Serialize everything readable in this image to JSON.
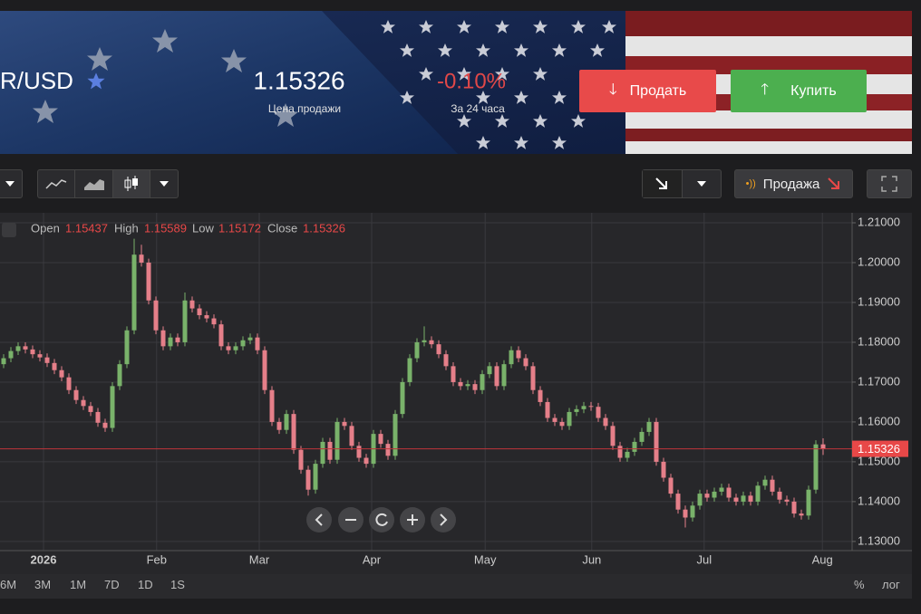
{
  "header": {
    "pair": "R/USD",
    "price_caption": "Цена продажи",
    "change": "-0.10%",
    "change_caption": "За 24 часа",
    "sell_button": "Продать",
    "buy_button": "Купить"
  },
  "toolbar": {
    "signal": "Продажа"
  },
  "range_bar": {
    "ranges": [
      "6M",
      "3M",
      "1M",
      "7D",
      "1D",
      "1S"
    ],
    "percent": "%",
    "log": "лог"
  },
  "chart_data": {
    "type": "candlestick",
    "legend_labels": [
      "Open",
      "High",
      "Low",
      "Close"
    ],
    "up_color": "#79b26a",
    "down_color": "#e57f89",
    "price_line_color": "#c0353a",
    "grid": true,
    "log_scale": false,
    "xlim": [
      -0.5,
      117
    ],
    "ylim": [
      1.1277,
      1.2125
    ],
    "xticks": [
      {
        "value": 5.5,
        "label": "2026"
      },
      {
        "value": 21.1,
        "label": "Feb"
      },
      {
        "value": 35.25,
        "label": "Mar"
      },
      {
        "value": 50.75,
        "label": "Apr"
      },
      {
        "value": 66.4,
        "label": "May"
      },
      {
        "value": 81.1,
        "label": "Jun"
      },
      {
        "value": 96.6,
        "label": "Jul"
      },
      {
        "value": 112.9,
        "label": "Aug"
      }
    ],
    "yticks": [
      {
        "value": 1.13,
        "label": "1.13000"
      },
      {
        "value": 1.14,
        "label": "1.14000"
      },
      {
        "value": 1.15,
        "label": "1.15000"
      },
      {
        "value": 1.16,
        "label": "1.16000"
      },
      {
        "value": 1.17,
        "label": "1.17000"
      },
      {
        "value": 1.18,
        "label": "1.18000"
      },
      {
        "value": 1.19,
        "label": "1.19000"
      },
      {
        "value": 1.2,
        "label": "1.20000"
      },
      {
        "value": 1.21,
        "label": "1.21000"
      }
    ],
    "open": [
      1.1745,
      1.176,
      1.1778,
      1.179,
      1.1782,
      1.177,
      1.1762,
      1.1748,
      1.173,
      1.1712,
      1.168,
      1.1655,
      1.164,
      1.1625,
      1.1598,
      1.1585,
      1.169,
      1.1745,
      1.183,
      1.202,
      1.2,
      1.1905,
      1.183,
      1.179,
      1.1812,
      1.18,
      1.1905,
      1.1885,
      1.1868,
      1.186,
      1.1845,
      1.179,
      1.178,
      1.179,
      1.1805,
      1.1812,
      1.178,
      1.168,
      1.16,
      1.158,
      1.162,
      1.153,
      1.148,
      1.143,
      1.1495,
      1.155,
      1.1505,
      1.16,
      1.159,
      1.154,
      1.151,
      1.1495,
      1.157,
      1.1545,
      1.1515,
      1.162,
      1.17,
      1.176,
      1.18,
      1.1805,
      1.1795,
      1.177,
      1.174,
      1.17,
      1.169,
      1.1695,
      1.168,
      1.172,
      1.174,
      1.169,
      1.1745,
      1.178,
      1.176,
      1.174,
      1.168,
      1.165,
      1.161,
      1.16,
      1.159,
      1.1625,
      1.1632,
      1.164,
      1.1638,
      1.161,
      1.159,
      1.154,
      1.151,
      1.1525,
      1.155,
      1.1575,
      1.16,
      1.15,
      1.146,
      1.142,
      1.138,
      1.136,
      1.139,
      1.142,
      1.141,
      1.1425,
      1.1435,
      1.141,
      1.14,
      1.1415,
      1.14,
      1.144,
      1.1455,
      1.1425,
      1.1405,
      1.14,
      1.137,
      1.1365,
      1.143,
      1.15437
    ],
    "high": [
      1.177,
      1.1788,
      1.18,
      1.18,
      1.1792,
      1.178,
      1.1772,
      1.1758,
      1.174,
      1.1722,
      1.169,
      1.1665,
      1.165,
      1.1635,
      1.1608,
      1.17,
      1.1755,
      1.184,
      1.206,
      1.2045,
      1.201,
      1.1915,
      1.184,
      1.1822,
      1.1822,
      1.1925,
      1.1915,
      1.1895,
      1.1878,
      1.187,
      1.1855,
      1.18,
      1.18,
      1.1815,
      1.1822,
      1.1822,
      1.179,
      1.169,
      1.161,
      1.163,
      1.163,
      1.154,
      1.149,
      1.1505,
      1.156,
      1.156,
      1.161,
      1.161,
      1.16,
      1.155,
      1.152,
      1.158,
      1.158,
      1.1555,
      1.163,
      1.171,
      1.177,
      1.181,
      1.184,
      1.1815,
      1.1805,
      1.178,
      1.175,
      1.171,
      1.1705,
      1.1705,
      1.173,
      1.175,
      1.175,
      1.1755,
      1.179,
      1.179,
      1.177,
      1.175,
      1.169,
      1.166,
      1.162,
      1.161,
      1.1635,
      1.1642,
      1.165,
      1.165,
      1.1648,
      1.162,
      1.16,
      1.155,
      1.1535,
      1.156,
      1.1585,
      1.161,
      1.161,
      1.151,
      1.147,
      1.143,
      1.139,
      1.14,
      1.143,
      1.143,
      1.1435,
      1.1445,
      1.1445,
      1.142,
      1.1425,
      1.1425,
      1.145,
      1.1465,
      1.1465,
      1.1435,
      1.1415,
      1.141,
      1.138,
      1.144,
      1.1554,
      1.15589
    ],
    "low": [
      1.1735,
      1.175,
      1.1768,
      1.1772,
      1.176,
      1.1752,
      1.1738,
      1.172,
      1.1702,
      1.167,
      1.1645,
      1.163,
      1.1615,
      1.1588,
      1.1575,
      1.1575,
      1.168,
      1.1735,
      1.182,
      1.199,
      1.1895,
      1.182,
      1.178,
      1.178,
      1.179,
      1.179,
      1.1875,
      1.1858,
      1.185,
      1.1835,
      1.178,
      1.177,
      1.177,
      1.178,
      1.1795,
      1.177,
      1.167,
      1.159,
      1.157,
      1.157,
      1.152,
      1.147,
      1.1415,
      1.142,
      1.1485,
      1.1495,
      1.1495,
      1.158,
      1.153,
      1.15,
      1.1485,
      1.1485,
      1.1535,
      1.1505,
      1.1505,
      1.161,
      1.169,
      1.175,
      1.179,
      1.1785,
      1.176,
      1.173,
      1.169,
      1.168,
      1.168,
      1.167,
      1.167,
      1.171,
      1.168,
      1.168,
      1.1735,
      1.175,
      1.173,
      1.167,
      1.164,
      1.16,
      1.159,
      1.158,
      1.158,
      1.1615,
      1.1622,
      1.1628,
      1.16,
      1.158,
      1.153,
      1.15,
      1.15,
      1.1515,
      1.154,
      1.1565,
      1.149,
      1.145,
      1.141,
      1.137,
      1.1335,
      1.135,
      1.138,
      1.14,
      1.14,
      1.1415,
      1.14,
      1.139,
      1.139,
      1.139,
      1.139,
      1.143,
      1.1415,
      1.1395,
      1.139,
      1.136,
      1.1355,
      1.1355,
      1.142,
      1.15172
    ],
    "close": [
      1.176,
      1.1778,
      1.179,
      1.1782,
      1.177,
      1.1762,
      1.1748,
      1.173,
      1.1712,
      1.168,
      1.1655,
      1.164,
      1.1625,
      1.1598,
      1.1585,
      1.169,
      1.1745,
      1.183,
      1.202,
      1.2,
      1.1905,
      1.183,
      1.179,
      1.1812,
      1.18,
      1.1905,
      1.1885,
      1.1868,
      1.186,
      1.1845,
      1.179,
      1.178,
      1.179,
      1.1805,
      1.1812,
      1.178,
      1.168,
      1.16,
      1.158,
      1.162,
      1.153,
      1.148,
      1.143,
      1.1495,
      1.155,
      1.1505,
      1.16,
      1.159,
      1.154,
      1.151,
      1.1495,
      1.157,
      1.1545,
      1.1515,
      1.162,
      1.17,
      1.176,
      1.18,
      1.1805,
      1.1795,
      1.177,
      1.174,
      1.17,
      1.169,
      1.1695,
      1.168,
      1.172,
      1.174,
      1.169,
      1.1745,
      1.178,
      1.176,
      1.174,
      1.168,
      1.165,
      1.161,
      1.16,
      1.159,
      1.1625,
      1.1632,
      1.164,
      1.1638,
      1.161,
      1.159,
      1.154,
      1.151,
      1.1525,
      1.155,
      1.1575,
      1.16,
      1.15,
      1.146,
      1.142,
      1.138,
      1.136,
      1.139,
      1.142,
      1.141,
      1.1425,
      1.1435,
      1.141,
      1.14,
      1.1415,
      1.14,
      1.144,
      1.1455,
      1.1425,
      1.1405,
      1.14,
      1.137,
      1.1365,
      1.143,
      1.15437,
      1.15326
    ]
  }
}
